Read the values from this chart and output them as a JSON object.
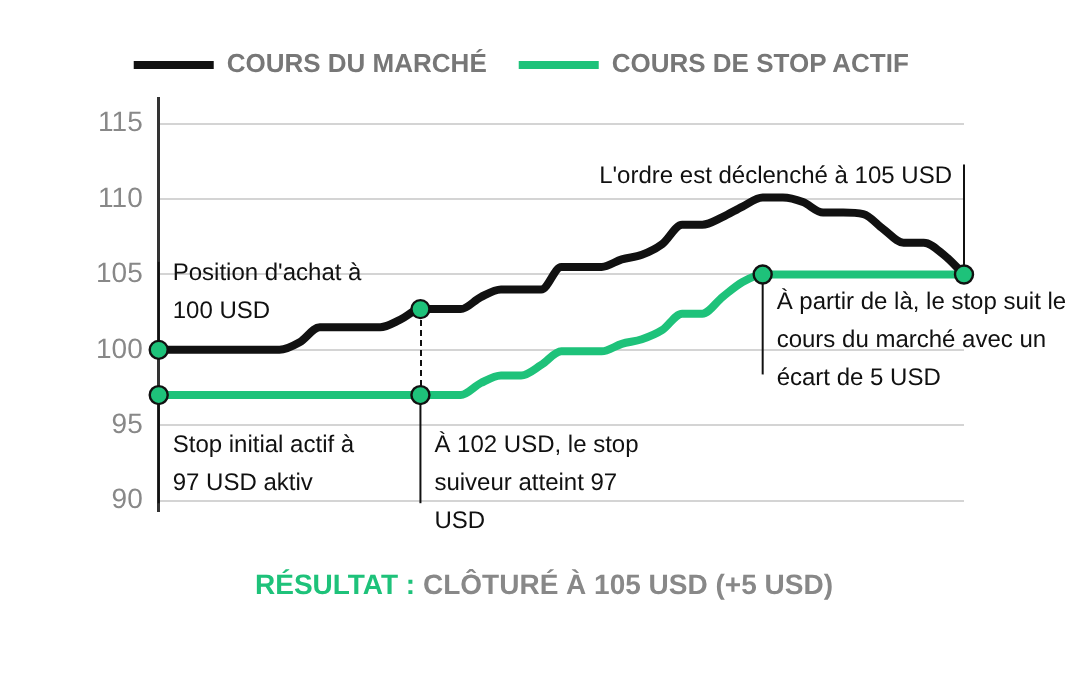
{
  "chart_data": {
    "type": "line",
    "categories": [
      null,
      null,
      null,
      null,
      null,
      null,
      null,
      null,
      null,
      null,
      null,
      null,
      null,
      null,
      null,
      null,
      null,
      null,
      null,
      null,
      null,
      null,
      null,
      null,
      null,
      null,
      null,
      null,
      null,
      null,
      null,
      null,
      null,
      null,
      null,
      null,
      null,
      null,
      null,
      null,
      null
    ],
    "series": [
      {
        "name": "COURS DU MARCHÉ",
        "color": "#111111",
        "values": [
          100,
          100,
          100,
          100,
          100,
          100,
          100,
          100.5,
          101.5,
          101.5,
          101.5,
          101.5,
          102,
          102.7,
          102.7,
          102.7,
          103.5,
          104,
          104,
          104,
          105.5,
          105.5,
          105.5,
          106,
          106.3,
          107,
          108.3,
          108.3,
          108.8,
          109.5,
          110.1,
          110.1,
          109.8,
          109.1,
          109.1,
          109,
          108,
          107.1,
          107.1,
          106.3,
          105
        ]
      },
      {
        "name": "COURS DE STOP ACTIF",
        "color": "#1ec27a",
        "values": [
          97,
          97,
          97,
          97,
          97,
          97,
          97,
          97,
          97,
          97,
          97,
          97,
          97,
          97,
          97,
          97,
          97.8,
          98.3,
          98.3,
          99,
          99.9,
          99.9,
          99.9,
          100.4,
          100.7,
          101.3,
          102.4,
          102.4,
          103.5,
          104.5,
          105,
          105,
          105,
          105,
          105,
          105,
          105,
          105,
          105,
          105,
          105
        ]
      }
    ],
    "ylim": [
      89.3,
      116.7
    ],
    "yticks": [
      90,
      95,
      100,
      105,
      110,
      115
    ],
    "grid": "y",
    "legend": "top",
    "tick_labels": "y",
    "line_style": "solid",
    "annotations": [
      "Position d'achat à 100 USD",
      "Stop initial actif à 97 USD aktiv",
      "À 102 USD, le stop suiveur atteint 97 USD",
      "À partir de là, le stop suit le cours du marché avec un écart de 5 USD",
      "L'ordre est déclenché à 105 USD",
      "RÉSULTAT : CLÔTURÉ À 105 USD (+5 USD)"
    ]
  }
}
